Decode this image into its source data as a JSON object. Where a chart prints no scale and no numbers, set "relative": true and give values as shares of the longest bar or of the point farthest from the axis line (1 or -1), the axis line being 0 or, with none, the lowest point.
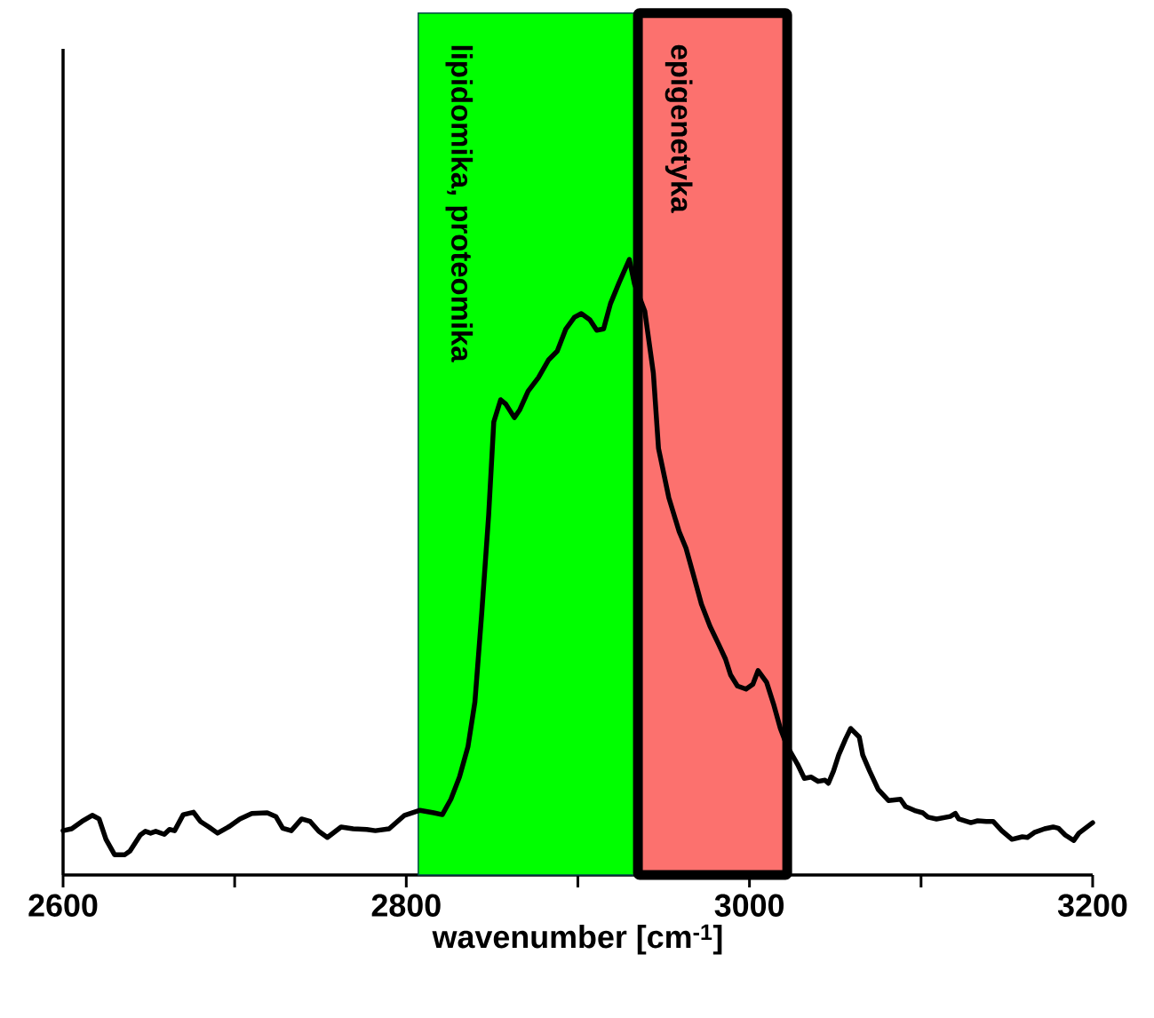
{
  "chart_data": {
    "type": "line",
    "relative": true,
    "xlabel": "wavenumber [cm$^{-1}$]",
    "xlim": [
      2600,
      3200
    ],
    "xticks": [
      2600,
      {
        "value": 2700,
        "label": null
      },
      2800,
      {
        "value": 2900,
        "label": null
      },
      3000,
      {
        "value": 3100,
        "label": null
      },
      3200
    ],
    "tick_labels": "x",
    "grid": false,
    "marker": "none",
    "line_style": "solid",
    "bands": [
      {
        "axis": "x",
        "from": 2807,
        "to": 2935,
        "label": "lipidomika, proteomika",
        "color": "#00ff00"
      },
      {
        "axis": "x",
        "from": 2935,
        "to": 3022,
        "label": "epigenetyka",
        "color": "#fc716e"
      }
    ],
    "series": [
      {
        "color": "#000000",
        "x": [
          2600,
          2605,
          2611,
          2617,
          2621,
          2625,
          2630,
          2636,
          2639,
          2645,
          2648,
          2651,
          2654,
          2659,
          2662,
          2665,
          2670,
          2676,
          2680,
          2685,
          2690,
          2697,
          2703,
          2710,
          2719,
          2724,
          2728,
          2733,
          2739,
          2744,
          2749,
          2754,
          2762,
          2769,
          2777,
          2782,
          2790,
          2799,
          2808,
          2816,
          2821,
          2826,
          2831,
          2836,
          2840,
          2844,
          2848,
          2851,
          2855,
          2858,
          2863,
          2866,
          2871,
          2877,
          2883,
          2888,
          2893,
          2898,
          2902,
          2907,
          2911,
          2915,
          2919,
          2924,
          2930,
          2933,
          2939,
          2944,
          2947,
          2953,
          2959,
          2963,
          2967,
          2972,
          2977,
          2982,
          2986,
          2989,
          2993,
          2998,
          3002,
          3005,
          3010,
          3014,
          3018,
          3022,
          3028,
          3032,
          3036,
          3040,
          3044,
          3046,
          3049,
          3052,
          3056,
          3059,
          3064,
          3066,
          3070,
          3075,
          3081,
          3088,
          3091,
          3097,
          3101,
          3104,
          3109,
          3117,
          3120,
          3122,
          3129,
          3133,
          3138,
          3142,
          3147,
          3153,
          3159,
          3162,
          3166,
          3172,
          3177,
          3180,
          3184,
          3189,
          3192,
          3200
        ],
        "values": [
          0.072,
          0.075,
          0.087,
          0.097,
          0.091,
          0.058,
          0.033,
          0.033,
          0.039,
          0.065,
          0.071,
          0.068,
          0.071,
          0.066,
          0.074,
          0.072,
          0.098,
          0.102,
          0.087,
          0.078,
          0.068,
          0.079,
          0.091,
          0.1,
          0.101,
          0.095,
          0.076,
          0.072,
          0.091,
          0.087,
          0.071,
          0.061,
          0.078,
          0.075,
          0.074,
          0.072,
          0.075,
          0.097,
          0.105,
          0.101,
          0.098,
          0.123,
          0.159,
          0.209,
          0.281,
          0.426,
          0.584,
          0.736,
          0.772,
          0.765,
          0.743,
          0.755,
          0.786,
          0.808,
          0.837,
          0.851,
          0.887,
          0.906,
          0.912,
          0.902,
          0.885,
          0.887,
          0.928,
          0.962,
          1.0,
          0.96,
          0.916,
          0.815,
          0.693,
          0.613,
          0.558,
          0.531,
          0.491,
          0.44,
          0.404,
          0.375,
          0.351,
          0.325,
          0.307,
          0.302,
          0.31,
          0.332,
          0.313,
          0.278,
          0.238,
          0.209,
          0.18,
          0.157,
          0.159,
          0.152,
          0.154,
          0.149,
          0.169,
          0.195,
          0.221,
          0.238,
          0.224,
          0.195,
          0.169,
          0.139,
          0.121,
          0.123,
          0.111,
          0.104,
          0.101,
          0.094,
          0.091,
          0.095,
          0.1,
          0.091,
          0.085,
          0.088,
          0.087,
          0.087,
          0.072,
          0.058,
          0.062,
          0.061,
          0.069,
          0.075,
          0.078,
          0.076,
          0.065,
          0.056,
          0.068,
          0.085
        ]
      }
    ]
  }
}
